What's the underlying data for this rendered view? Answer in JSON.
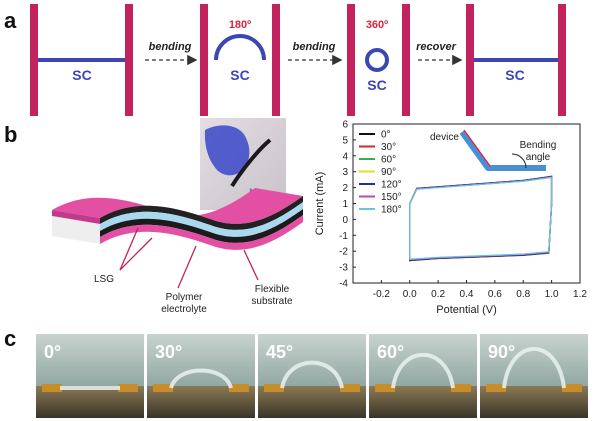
{
  "panel_a": {
    "label": "a",
    "sc_label": "SC",
    "bend1_angle": "180º",
    "bend2_angle": "360º",
    "arrows": [
      "bending",
      "bending",
      "recover"
    ],
    "colors": {
      "electrode": "#c2235e",
      "sc": "#3c46b4",
      "angle": "#d8253e"
    }
  },
  "panel_b": {
    "label": "b",
    "diagram_labels": {
      "lsg": "LSG",
      "electrolyte_line1": "Polymer",
      "electrolyte_line2": "electrolyte",
      "substrate_line1": "Flexible",
      "substrate_line2": "substrate"
    },
    "inset_labels": {
      "device": "device",
      "bending_line1": "Bending",
      "bending_line2": "angle"
    },
    "colors": {
      "top": "#e24fa3",
      "black_layer": "#222222",
      "electrolyte": "#aad8ef"
    }
  },
  "chart_data": {
    "type": "line",
    "xlabel": "Potential (V)",
    "ylabel": "Current (mA)",
    "xlim": [
      -0.4,
      1.2
    ],
    "ylim": [
      -4,
      6
    ],
    "xticks": [
      "-0.2",
      "0.0",
      "0.2",
      "0.4",
      "0.6",
      "0.8",
      "1.0",
      "1.2"
    ],
    "yticks": [
      "6",
      "5",
      "4",
      "3",
      "2",
      "1",
      "0",
      "-1",
      "-2",
      "-3",
      "-4"
    ],
    "legend_position": "top-left",
    "series": [
      {
        "name": "0°",
        "color": "#111111",
        "upper": [
          [
            0,
            1.0
          ],
          [
            0.05,
            1.95
          ],
          [
            0.2,
            2.05
          ],
          [
            0.5,
            2.25
          ],
          [
            0.8,
            2.45
          ],
          [
            1.0,
            2.7
          ]
        ],
        "lower": [
          [
            1.0,
            1.0
          ],
          [
            0.98,
            -2.1
          ],
          [
            0.8,
            -2.25
          ],
          [
            0.5,
            -2.35
          ],
          [
            0.2,
            -2.45
          ],
          [
            0.05,
            -2.55
          ],
          [
            0,
            -2.6
          ]
        ]
      },
      {
        "name": "30°",
        "color": "#d9252e",
        "upper": [
          [
            0,
            1.0
          ],
          [
            0.05,
            1.95
          ],
          [
            0.2,
            2.04
          ],
          [
            0.5,
            2.24
          ],
          [
            0.8,
            2.44
          ],
          [
            1.0,
            2.72
          ]
        ],
        "lower": [
          [
            1.0,
            1.0
          ],
          [
            0.98,
            -2.12
          ],
          [
            0.8,
            -2.26
          ],
          [
            0.5,
            -2.36
          ],
          [
            0.2,
            -2.46
          ],
          [
            0.05,
            -2.56
          ],
          [
            0,
            -2.58
          ]
        ]
      },
      {
        "name": "60°",
        "color": "#2fb24a",
        "upper": [
          [
            0,
            1.0
          ],
          [
            0.05,
            1.93
          ],
          [
            0.2,
            2.03
          ],
          [
            0.5,
            2.23
          ],
          [
            0.8,
            2.43
          ],
          [
            1.0,
            2.68
          ]
        ],
        "lower": [
          [
            1.0,
            1.0
          ],
          [
            0.98,
            -2.08
          ],
          [
            0.8,
            -2.22
          ],
          [
            0.5,
            -2.33
          ],
          [
            0.2,
            -2.43
          ],
          [
            0.05,
            -2.52
          ],
          [
            0,
            -2.55
          ]
        ]
      },
      {
        "name": "90°",
        "color": "#e8d92a",
        "upper": [
          [
            0,
            1.0
          ],
          [
            0.05,
            1.92
          ],
          [
            0.2,
            2.02
          ],
          [
            0.5,
            2.22
          ],
          [
            0.8,
            2.42
          ],
          [
            1.0,
            2.66
          ]
        ],
        "lower": [
          [
            1.0,
            1.0
          ],
          [
            0.98,
            -2.06
          ],
          [
            0.8,
            -2.2
          ],
          [
            0.5,
            -2.31
          ],
          [
            0.2,
            -2.41
          ],
          [
            0.05,
            -2.5
          ],
          [
            0,
            -2.53
          ]
        ]
      },
      {
        "name": "120°",
        "color": "#2a2f9c",
        "upper": [
          [
            0,
            1.0
          ],
          [
            0.05,
            1.94
          ],
          [
            0.2,
            2.04
          ],
          [
            0.5,
            2.24
          ],
          [
            0.8,
            2.44
          ],
          [
            1.0,
            2.69
          ]
        ],
        "lower": [
          [
            1.0,
            1.0
          ],
          [
            0.98,
            -2.1
          ],
          [
            0.8,
            -2.24
          ],
          [
            0.5,
            -2.34
          ],
          [
            0.2,
            -2.44
          ],
          [
            0.05,
            -2.54
          ],
          [
            0,
            -2.57
          ]
        ]
      },
      {
        "name": "150°",
        "color": "#b84ab5",
        "upper": [
          [
            0,
            1.0
          ],
          [
            0.05,
            1.91
          ],
          [
            0.2,
            2.01
          ],
          [
            0.5,
            2.21
          ],
          [
            0.8,
            2.41
          ],
          [
            1.0,
            2.65
          ]
        ],
        "lower": [
          [
            1.0,
            1.0
          ],
          [
            0.98,
            -2.05
          ],
          [
            0.8,
            -2.19
          ],
          [
            0.5,
            -2.3
          ],
          [
            0.2,
            -2.4
          ],
          [
            0.05,
            -2.49
          ],
          [
            0,
            -2.52
          ]
        ]
      },
      {
        "name": "180°",
        "color": "#67c6dc",
        "upper": [
          [
            0,
            1.0
          ],
          [
            0.05,
            1.9
          ],
          [
            0.2,
            2.0
          ],
          [
            0.5,
            2.2
          ],
          [
            0.8,
            2.4
          ],
          [
            1.0,
            2.64
          ]
        ],
        "lower": [
          [
            1.0,
            1.0
          ],
          [
            0.98,
            -2.04
          ],
          [
            0.8,
            -2.18
          ],
          [
            0.5,
            -2.29
          ],
          [
            0.2,
            -2.39
          ],
          [
            0.05,
            -2.48
          ],
          [
            0,
            -2.5
          ]
        ]
      }
    ]
  },
  "panel_c": {
    "label": "c",
    "photo_angles": [
      "0°",
      "30°",
      "45°",
      "60°",
      "90°"
    ]
  }
}
